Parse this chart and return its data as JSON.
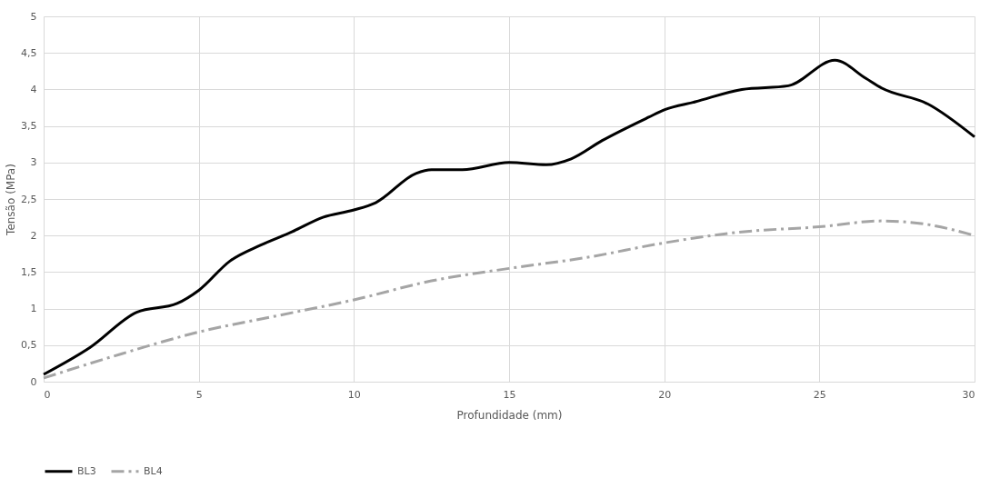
{
  "chart_data": {
    "type": "line",
    "xlabel": "Profundidade (mm)",
    "ylabel": "Tensão (MPa)",
    "xlim": [
      0,
      30
    ],
    "xticks": [
      0,
      5,
      10,
      15,
      20,
      25,
      30
    ],
    "ylim": [
      0,
      5
    ],
    "yticks": [
      0,
      {
        "value": 0.5,
        "label": "0,5"
      },
      1,
      {
        "value": 1.5,
        "label": "1,5"
      },
      2,
      {
        "value": 2.5,
        "label": "2,5"
      },
      3,
      {
        "value": 3.5,
        "label": "3,5"
      },
      4,
      {
        "value": 4.5,
        "label": "4,5"
      },
      5
    ],
    "grid": true,
    "legend": "bottom",
    "marker": "none",
    "series": [
      {
        "name": "BL3",
        "color": "#000000",
        "line_style": "solid",
        "x": [
          0,
          1.5,
          3,
          4.3,
          5,
          6,
          7,
          8,
          9,
          10,
          10.7,
          12,
          12.5,
          13.5,
          15,
          16.2,
          17,
          18,
          19.5,
          20,
          21,
          22.5,
          24,
          25.5,
          26.5,
          27,
          28.5,
          30
        ],
        "values": [
          0.1,
          0.47,
          0.95,
          1.07,
          1.25,
          1.65,
          1.87,
          2.05,
          2.25,
          2.35,
          2.45,
          2.85,
          2.9,
          2.9,
          3.0,
          2.97,
          3.05,
          3.3,
          3.62,
          3.72,
          3.83,
          4.0,
          4.05,
          4.4,
          4.15,
          4.02,
          3.8,
          3.35
        ]
      },
      {
        "name": "BL4",
        "color": "#a5a5a5",
        "line_style": "dashed",
        "x": [
          0,
          2.5,
          5,
          7.5,
          10,
          12.5,
          15,
          17.5,
          20,
          22.5,
          25,
          27,
          28.5,
          30
        ],
        "values": [
          0.05,
          0.38,
          0.68,
          0.9,
          1.12,
          1.38,
          1.55,
          1.7,
          1.9,
          2.05,
          2.12,
          2.2,
          2.15,
          2.0
        ]
      }
    ]
  }
}
